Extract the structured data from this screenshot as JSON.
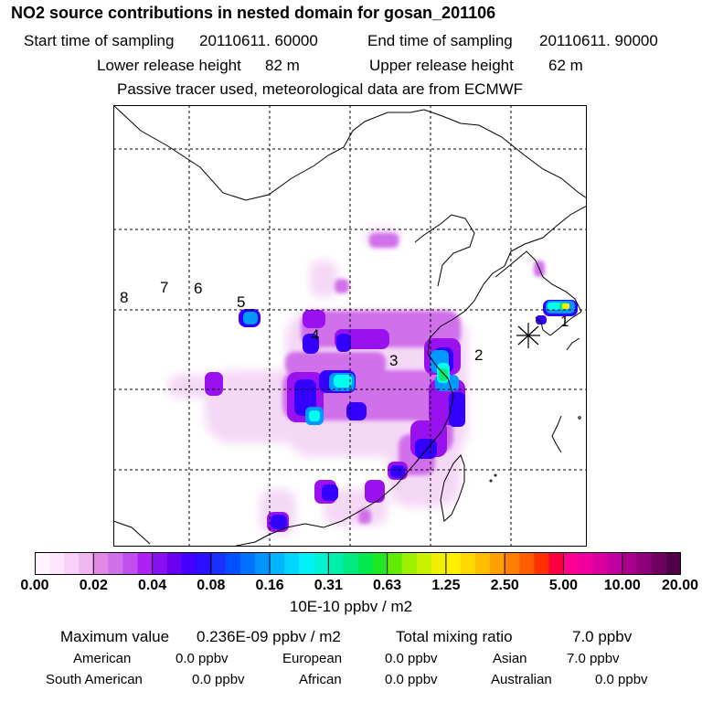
{
  "header": {
    "title": "NO2 source contributions in nested domain for gosan_201106",
    "start_label": "Start time of sampling",
    "start_value": "20110611. 60000",
    "end_label": "End time of sampling",
    "end_value": "20110611. 90000",
    "lower_label": "Lower release height",
    "lower_value": "82 m",
    "upper_label": "Upper release height",
    "upper_value": "62 m",
    "note": "Passive tracer used, meteorological data are from ECMWF"
  },
  "map": {
    "region_numbers": [
      "1",
      "2",
      "3",
      "4",
      "5",
      "6",
      "7",
      "8"
    ],
    "receptor_marker": "star-receptor-icon",
    "grid_style": "dashed",
    "blob_colors": [
      "#f0ccf0",
      "#cc66ee",
      "#9911ee",
      "#3300ff",
      "#0099ff",
      "#00ffee",
      "#00ee77",
      "#ffee00",
      "#ff9900"
    ]
  },
  "colorbar": {
    "ticks": [
      "0.00",
      "0.02",
      "0.04",
      "0.08",
      "0.16",
      "0.31",
      "0.63",
      "1.25",
      "2.50",
      "5.00",
      "10.00",
      "20.00"
    ],
    "unit": "10E-10 ppbv / m2",
    "colors": [
      "#fff4ff",
      "#ffe6ff",
      "#f9d0f9",
      "#f0b6f2",
      "#e08ae6",
      "#d070ea",
      "#c050ee",
      "#ac22f2",
      "#8810f2",
      "#6a00f0",
      "#4400ff",
      "#2a10ff",
      "#1a30ff",
      "#0050ff",
      "#0070ff",
      "#0094ff",
      "#00b4ff",
      "#00d6ff",
      "#00f2f8",
      "#00f2d0",
      "#00eeaa",
      "#00ea80",
      "#00e850",
      "#20e820",
      "#60ec00",
      "#9cf000",
      "#c8f200",
      "#eef000",
      "#fff000",
      "#ffd800",
      "#ffbc00",
      "#ffa000",
      "#ff8000",
      "#ff5c00",
      "#ff3000",
      "#ff0040",
      "#ff0090",
      "#f000a0",
      "#d800a0",
      "#c000a0",
      "#a8008c",
      "#8c0078",
      "#700060",
      "#500048"
    ]
  },
  "summary": {
    "max_label": "Maximum value",
    "max_value": "0.236E-09 ppbv / m2",
    "total_label": "Total mixing ratio",
    "total_value": "7.0 ppbv",
    "regions": [
      {
        "name": "American",
        "value": "0.0 ppbv"
      },
      {
        "name": "European",
        "value": "0.0 ppbv"
      },
      {
        "name": "Asian",
        "value": "7.0 ppbv"
      },
      {
        "name": "South American",
        "value": "0.0 ppbv"
      },
      {
        "name": "African",
        "value": "0.0 ppbv"
      },
      {
        "name": "Australian",
        "value": "0.0 ppbv"
      }
    ]
  }
}
